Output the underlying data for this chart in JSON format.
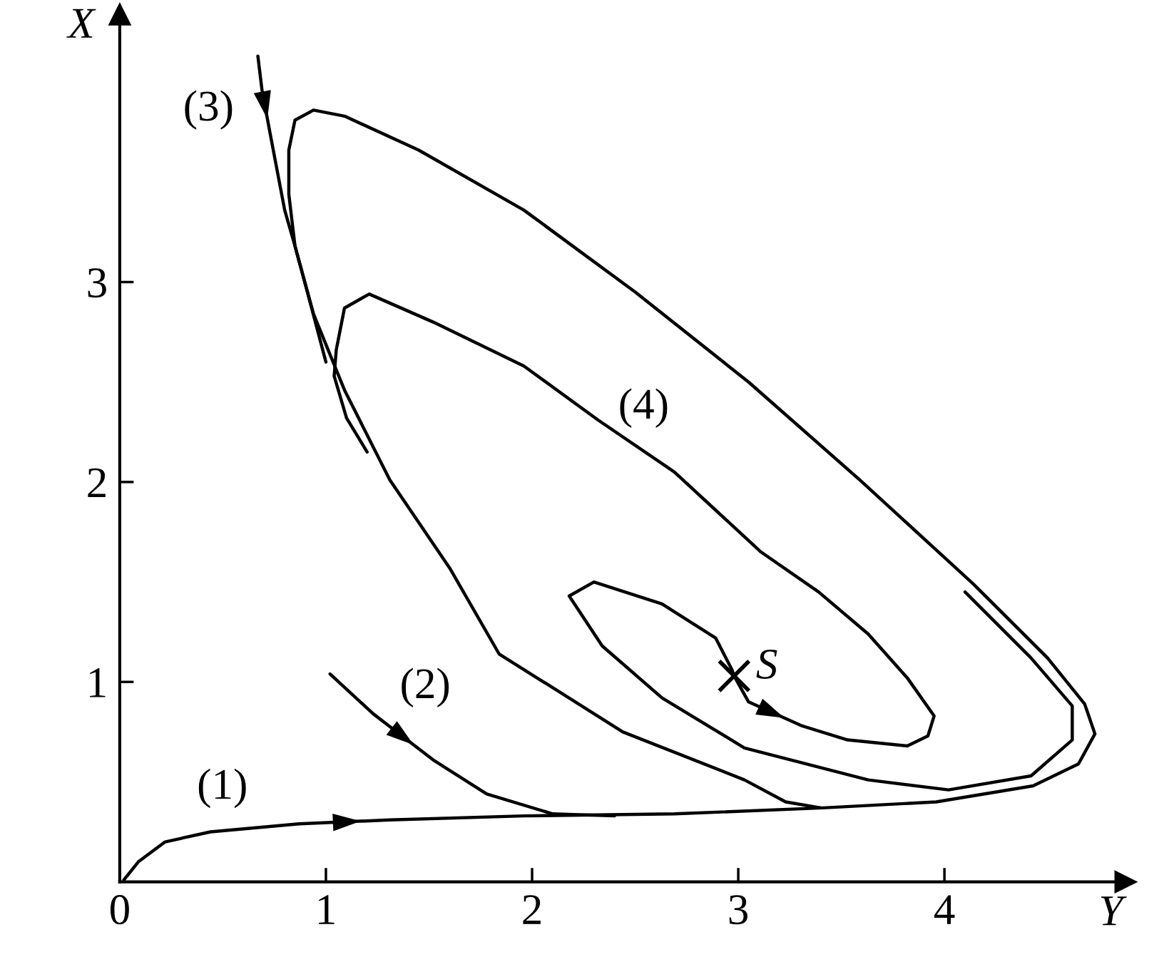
{
  "chart_data": {
    "type": "line",
    "xlabel": "Y",
    "ylabel": "X",
    "xlim": [
      0,
      4.88
    ],
    "ylim": [
      0,
      4.34
    ],
    "xticks": [
      0,
      1,
      2,
      3,
      4
    ],
    "yticks": [
      1,
      2,
      3
    ],
    "series": [
      {
        "name": "(1)",
        "color": "#000000",
        "x": [
          0.02,
          0.09,
          0.22,
          0.44,
          0.87,
          1.31,
          1.96,
          2.69,
          3.41,
          3.96,
          4.43,
          4.65,
          4.73,
          4.68,
          4.5,
          4.14,
          3.59,
          3.05,
          2.5,
          1.96,
          1.45,
          1.09,
          0.94,
          0.85,
          0.82,
          0.82,
          0.85,
          0.94,
          1.09,
          1.31,
          1.6,
          1.84,
          2.44,
          3.03,
          3.23,
          3.4
        ],
        "values": [
          0.01,
          0.1,
          0.2,
          0.25,
          0.29,
          0.31,
          0.33,
          0.34,
          0.37,
          0.4,
          0.48,
          0.59,
          0.74,
          0.89,
          1.12,
          1.49,
          2.01,
          2.5,
          2.95,
          3.36,
          3.66,
          3.83,
          3.86,
          3.81,
          3.66,
          3.44,
          3.18,
          2.84,
          2.46,
          2.01,
          1.57,
          1.14,
          0.75,
          0.51,
          0.4,
          0.37
        ]
      },
      {
        "name": "(2)",
        "color": "#000000",
        "x": [
          1.02,
          1.23,
          1.52,
          1.78,
          2.1,
          2.4
        ],
        "values": [
          1.04,
          0.84,
          0.61,
          0.44,
          0.34,
          0.33
        ]
      },
      {
        "name": "(3)",
        "color": "#000000",
        "x": [
          0.67,
          0.69,
          0.73,
          0.8,
          0.85,
          0.91,
          1.0
        ],
        "values": [
          4.13,
          3.96,
          3.74,
          3.36,
          3.18,
          2.95,
          2.6
        ]
      },
      {
        "name": "(4)",
        "color": "#000000",
        "x": [
          4.1,
          4.42,
          4.62,
          4.62,
          4.42,
          4.02,
          3.63,
          3.03,
          2.63,
          2.34,
          2.18,
          2.3,
          2.63,
          2.89,
          2.97,
          2.98,
          3.05,
          3.31,
          3.53,
          3.82,
          3.92,
          3.95,
          3.82,
          3.63,
          3.39,
          3.11,
          2.69,
          2.32,
          1.96,
          1.52,
          1.21,
          1.09,
          1.05,
          1.04,
          1.1,
          1.2
        ],
        "values": [
          1.45,
          1.12,
          0.88,
          0.71,
          0.53,
          0.46,
          0.51,
          0.67,
          0.92,
          1.18,
          1.43,
          1.5,
          1.39,
          1.22,
          1.06,
          1.03,
          0.9,
          0.78,
          0.71,
          0.68,
          0.73,
          0.83,
          1.02,
          1.24,
          1.45,
          1.65,
          2.05,
          2.31,
          2.58,
          2.8,
          2.94,
          2.87,
          2.66,
          2.53,
          2.32,
          2.15
        ]
      },
      {
        "type": "scatter",
        "name": "S",
        "color": "#000000",
        "marker": "cross",
        "x": [
          2.98
        ],
        "values": [
          1.03
        ]
      }
    ]
  }
}
